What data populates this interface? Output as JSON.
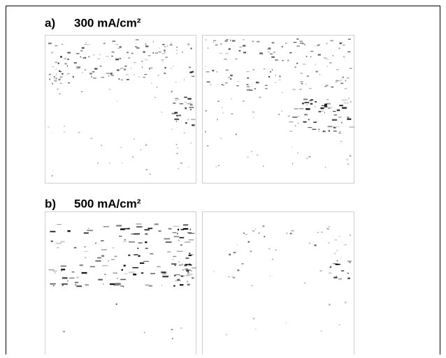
{
  "panels": [
    {
      "letter": "a)",
      "label": "300 mA/cm²"
    },
    {
      "letter": "b)",
      "label": "500 mA/cm²"
    }
  ]
}
